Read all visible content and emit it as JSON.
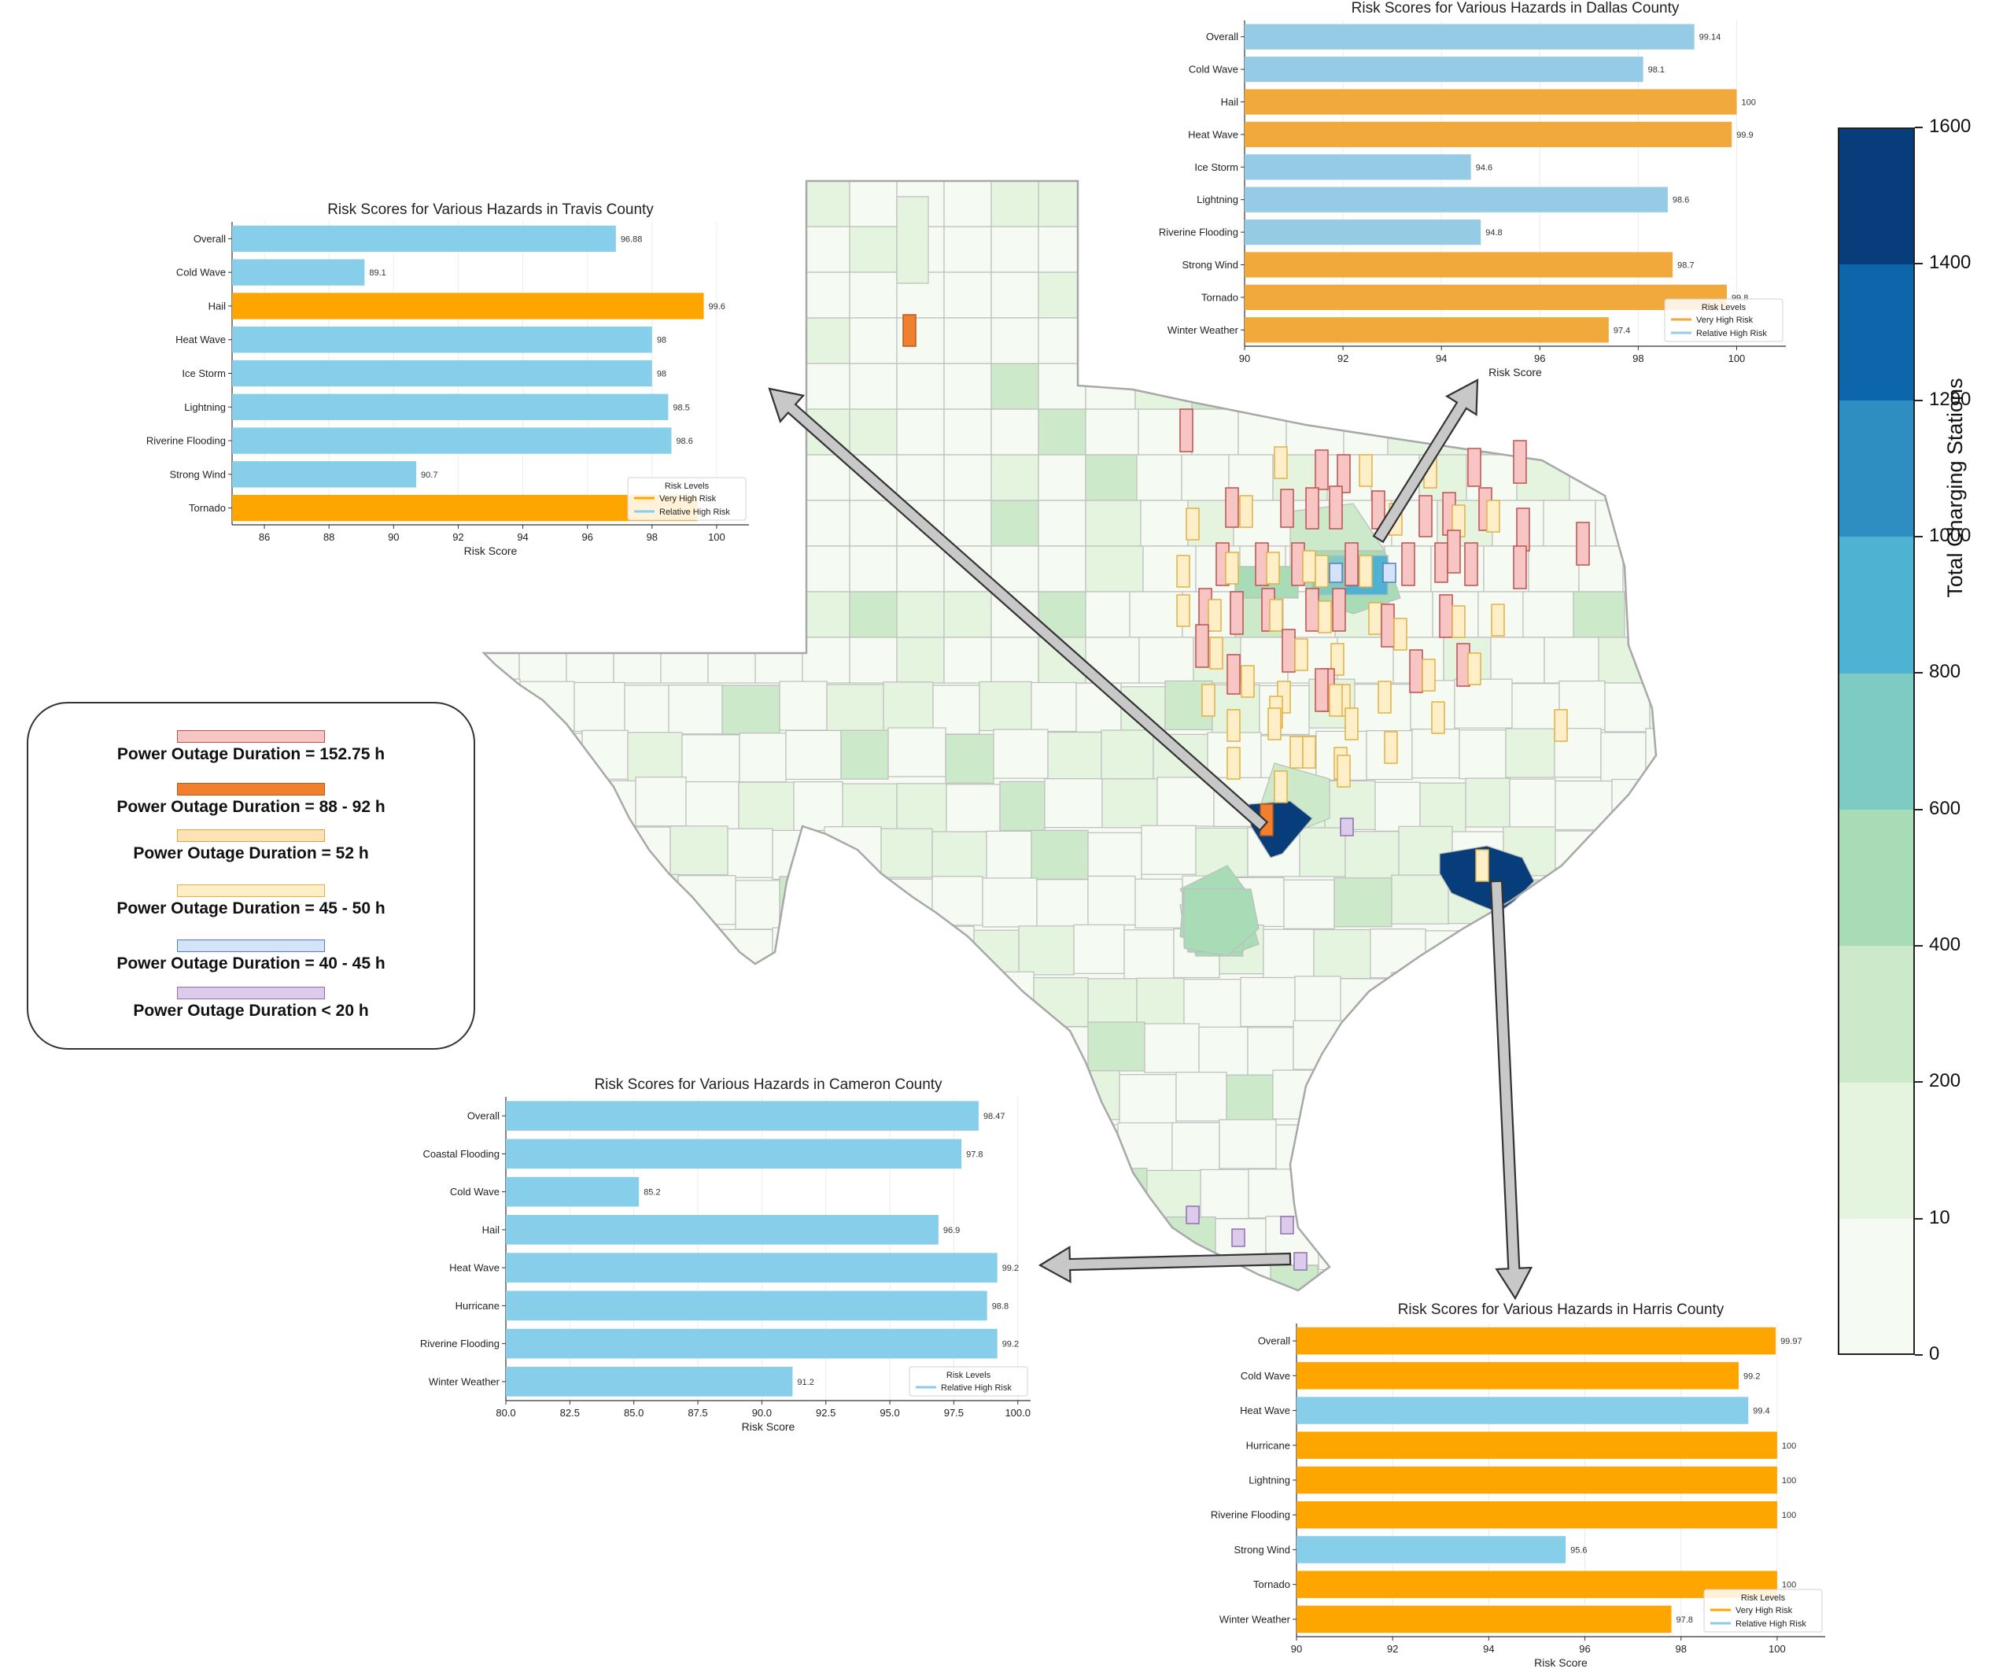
{
  "colors": {
    "very_high_risk": "#FFA500",
    "relative_high_risk": "#87CEEB",
    "dallas_very_high_risk": "#F0A93A",
    "dallas_relative_high_risk": "#96CBE6",
    "colormap": [
      "#F5FAF2",
      "#E4F4DF",
      "#CCEACA",
      "#A8DCB6",
      "#7DCBC3",
      "#4EB2D3",
      "#2E8EC2",
      "#0C66A9",
      "#083D7B"
    ],
    "outage_152": "#F7C5C3",
    "outage_88_92": "#F07F2E",
    "outage_52": "#FFE2B5",
    "outage_45_50": "#FFEFC9",
    "outage_40_45": "#D3E3FA",
    "outage_lt20": "#DCCBEA",
    "map_border": "#bdbdbd"
  },
  "outage_legend": [
    {
      "label": "Power Outage Duration = 152.75 h",
      "color_key": "outage_152",
      "stroke": "#c0504d"
    },
    {
      "label": "Power Outage Duration = 88 - 92 h",
      "color_key": "outage_88_92",
      "stroke": "#b85a19"
    },
    {
      "label": "Power Outage Duration = 52 h",
      "color_key": "outage_52",
      "stroke": "#e4a03a"
    },
    {
      "label": "Power Outage Duration = 45 - 50 h",
      "color_key": "outage_45_50",
      "stroke": "#e4b040"
    },
    {
      "label": "Power Outage Duration = 40 - 45 h",
      "color_key": "outage_40_45",
      "stroke": "#5b7bc0"
    },
    {
      "label": "Power Outage Duration < 20 h",
      "color_key": "outage_lt20",
      "stroke": "#8f6fb2"
    }
  ],
  "colorbar": {
    "title": "Total Charging Stations",
    "ticks": [
      "0",
      "10",
      "200",
      "400",
      "600",
      "800",
      "1000",
      "1200",
      "1400",
      "1600"
    ]
  },
  "chart_data": [
    {
      "type": "bar",
      "title": "Risk Scores for Various Hazards in Travis County",
      "xlabel": "Risk Score",
      "xlim": [
        85,
        101
      ],
      "xticks": [
        "86",
        "88",
        "90",
        "92",
        "94",
        "96",
        "98",
        "100"
      ],
      "categories": [
        "Overall",
        "Cold Wave",
        "Hail",
        "Heat Wave",
        "Ice Storm",
        "Lightning",
        "Riverine Flooding",
        "Strong Wind",
        "Tornado"
      ],
      "values": [
        96.88,
        89.1,
        99.6,
        98,
        98,
        98.5,
        98.6,
        90.7,
        99.4
      ],
      "value_labels": [
        "96.88",
        "89.1",
        "99.6",
        "98",
        "98",
        "98.5",
        "98.6",
        "90.7",
        ""
      ],
      "risk": [
        "relative",
        "relative",
        "very",
        "relative",
        "relative",
        "relative",
        "relative",
        "relative",
        "very"
      ],
      "legend": {
        "title": "Risk Levels",
        "entries": [
          "Very High Risk",
          "Relative High Risk"
        ],
        "loc": "lower right"
      }
    },
    {
      "type": "bar",
      "title": "Risk Scores for Various Hazards in Dallas County",
      "xlabel": "Risk Score",
      "xlim": [
        90,
        101
      ],
      "xticks": [
        "90",
        "92",
        "94",
        "96",
        "98",
        "100"
      ],
      "categories": [
        "Overall",
        "Cold Wave",
        "Hail",
        "Heat Wave",
        "Ice Storm",
        "Lightning",
        "Riverine Flooding",
        "Strong Wind",
        "Tornado",
        "Winter Weather"
      ],
      "values": [
        99.14,
        98.1,
        100,
        99.9,
        94.6,
        98.6,
        94.8,
        98.7,
        99.8,
        97.4
      ],
      "value_labels": [
        "99.14",
        "98.1",
        "100",
        "99.9",
        "94.6",
        "98.6",
        "94.8",
        "98.7",
        "99.8",
        "97.4"
      ],
      "risk": [
        "relative",
        "relative",
        "very",
        "very",
        "relative",
        "relative",
        "relative",
        "very",
        "very",
        "very"
      ],
      "legend": {
        "title": "Risk Levels",
        "entries": [
          "Very High Risk",
          "Relative High Risk"
        ],
        "loc": "lower right"
      }
    },
    {
      "type": "bar",
      "title": "Risk Scores for Various Hazards in Cameron County",
      "xlabel": "Risk Score",
      "xlim": [
        80,
        100.5
      ],
      "xticks": [
        "80.0",
        "82.5",
        "85.0",
        "87.5",
        "90.0",
        "92.5",
        "95.0",
        "97.5",
        "100.0"
      ],
      "categories": [
        "Overall",
        "Coastal Flooding",
        "Cold Wave",
        "Hail",
        "Heat Wave",
        "Hurricane",
        "Riverine Flooding",
        "Winter Weather"
      ],
      "values": [
        98.47,
        97.8,
        85.2,
        96.9,
        99.2,
        98.8,
        99.2,
        91.2
      ],
      "value_labels": [
        "98.47",
        "97.8",
        "85.2",
        "96.9",
        "99.2",
        "98.8",
        "99.2",
        "91.2"
      ],
      "risk": [
        "relative",
        "relative",
        "relative",
        "relative",
        "relative",
        "relative",
        "relative",
        "relative"
      ],
      "legend": {
        "title": "Risk Levels",
        "entries": [
          "Relative High Risk"
        ],
        "loc": "lower right"
      }
    },
    {
      "type": "bar",
      "title": "Risk Scores for Various Hazards in Harris County",
      "xlabel": "Risk Score",
      "xlim": [
        90,
        101
      ],
      "xticks": [
        "90",
        "92",
        "94",
        "96",
        "98",
        "100"
      ],
      "categories": [
        "Overall",
        "Cold Wave",
        "Heat Wave",
        "Hurricane",
        "Lightning",
        "Riverine Flooding",
        "Strong Wind",
        "Tornado",
        "Winter Weather"
      ],
      "values": [
        99.97,
        99.2,
        99.4,
        100,
        100,
        100,
        95.6,
        100,
        97.8
      ],
      "value_labels": [
        "99.97",
        "99.2",
        "99.4",
        "100",
        "100",
        "100",
        "95.6",
        "100",
        "97.8"
      ],
      "risk": [
        "very",
        "very",
        "relative",
        "very",
        "very",
        "very",
        "relative",
        "very",
        "very"
      ],
      "legend": {
        "title": "Risk Levels",
        "entries": [
          "Very High Risk",
          "Relative High Risk"
        ],
        "loc": "lower right"
      }
    }
  ]
}
